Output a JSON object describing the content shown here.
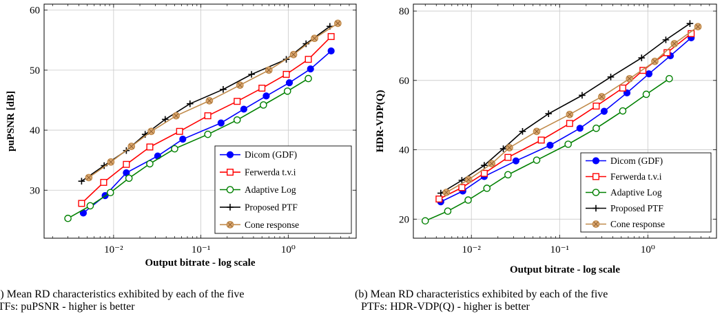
{
  "colors": {
    "dicom": "#0000ff",
    "ferwerda": "#ff0000",
    "adaptive_log": "#008000",
    "proposed": "#000000",
    "cone": "#c08a4a",
    "grid": "#c8c8c8"
  },
  "captions": [
    {
      "line1": "(a) Mean RD characteristics exhibited by each of the five",
      "line2": "PTFs: puPSNR - higher is better"
    },
    {
      "line1": "(b) Mean RD characteristics exhibited by each of the five",
      "line2": "PTFs: HDR-VDP(Q) - higher is better"
    }
  ],
  "chart_data": [
    {
      "type": "line",
      "xscale": "log",
      "xlabel": "Output bitrate - log scale",
      "ylabel": "puPSNR [dB]",
      "xlim": [
        0.0016,
        6
      ],
      "ylim": [
        22,
        61
      ],
      "xticks": [
        0.01,
        0.1,
        1
      ],
      "xtick_labels": [
        "10⁻²",
        "10⁻¹",
        "10⁰"
      ],
      "yticks": [
        30,
        40,
        50,
        60
      ],
      "grid": true,
      "legend_position": "bottom-right",
      "series": [
        {
          "name": "Dicom (GDF)",
          "color_key": "dicom",
          "marker": "filled-circle",
          "x": [
            0.0045,
            0.008,
            0.014,
            0.032,
            0.062,
            0.17,
            0.31,
            0.56,
            1.03,
            1.8,
            3.1
          ],
          "y": [
            26.2,
            29.1,
            32.9,
            35.7,
            38.5,
            41.2,
            43.5,
            45.7,
            47.9,
            50.2,
            53.2
          ]
        },
        {
          "name": "Ferwerda t.v.i",
          "color_key": "ferwerda",
          "marker": "open-square",
          "x": [
            0.0043,
            0.0077,
            0.014,
            0.026,
            0.057,
            0.12,
            0.26,
            0.5,
            0.95,
            1.7,
            3.1
          ],
          "y": [
            27.8,
            31.3,
            34.3,
            37.2,
            39.8,
            42.4,
            44.8,
            47.0,
            49.3,
            51.8,
            55.6
          ]
        },
        {
          "name": "Adaptive Log",
          "color_key": "adaptive_log",
          "marker": "open-circle",
          "x": [
            0.003,
            0.0054,
            0.0092,
            0.015,
            0.026,
            0.05,
            0.12,
            0.26,
            0.52,
            0.98,
            1.7
          ],
          "y": [
            25.3,
            27.4,
            29.6,
            32.0,
            34.4,
            36.9,
            39.3,
            41.7,
            44.2,
            46.5,
            48.6
          ]
        },
        {
          "name": "Proposed PTF",
          "color_key": "proposed",
          "marker": "plus",
          "x": [
            0.0043,
            0.0078,
            0.014,
            0.023,
            0.039,
            0.075,
            0.18,
            0.38,
            0.95,
            1.6,
            3.0
          ],
          "y": [
            31.5,
            34.1,
            36.6,
            39.3,
            41.8,
            44.4,
            46.8,
            49.3,
            51.8,
            54.4,
            57.3
          ]
        },
        {
          "name": "Cone response",
          "color_key": "cone",
          "marker": "crossed-circle",
          "x": [
            0.0052,
            0.0093,
            0.016,
            0.027,
            0.052,
            0.125,
            0.28,
            0.6,
            1.15,
            2.0,
            3.7
          ],
          "y": [
            32.1,
            34.7,
            37.3,
            39.8,
            42.4,
            44.9,
            47.5,
            50.0,
            52.6,
            55.3,
            57.8
          ]
        }
      ]
    },
    {
      "type": "line",
      "xscale": "log",
      "xlabel": "Output bitrate - log scale",
      "ylabel": "HDR-VDP(Q)",
      "xlim": [
        0.0022,
        6
      ],
      "ylim": [
        14.5,
        82
      ],
      "xticks": [
        0.01,
        0.1,
        1
      ],
      "xtick_labels": [
        "10⁻²",
        "10⁻¹",
        "10⁰"
      ],
      "yticks": [
        20,
        40,
        60,
        80
      ],
      "grid": true,
      "legend_position": "bottom-right",
      "series": [
        {
          "name": "Dicom (GDF)",
          "color_key": "dicom",
          "marker": "filled-circle",
          "x": [
            0.0045,
            0.008,
            0.014,
            0.032,
            0.078,
            0.17,
            0.32,
            0.58,
            1.03,
            1.8,
            3.1
          ],
          "y": [
            25.0,
            28.1,
            32.3,
            36.8,
            41.3,
            46.2,
            51.1,
            56.4,
            61.9,
            67.1,
            72.3
          ]
        },
        {
          "name": "Ferwerda t.v.i",
          "color_key": "ferwerda",
          "marker": "open-square",
          "x": [
            0.0043,
            0.0078,
            0.014,
            0.026,
            0.062,
            0.13,
            0.26,
            0.52,
            0.88,
            1.65,
            3.1
          ],
          "y": [
            25.8,
            29.1,
            33.2,
            37.8,
            42.8,
            47.6,
            52.6,
            57.8,
            62.9,
            68.0,
            73.5
          ]
        },
        {
          "name": "Adaptive Log",
          "color_key": "adaptive_log",
          "marker": "open-circle",
          "x": [
            0.003,
            0.0054,
            0.0092,
            0.015,
            0.026,
            0.055,
            0.125,
            0.26,
            0.52,
            0.96,
            1.75
          ],
          "y": [
            19.5,
            22.3,
            25.5,
            28.9,
            32.8,
            37.0,
            41.6,
            46.2,
            51.2,
            56.0,
            60.5
          ]
        },
        {
          "name": "Proposed PTF",
          "color_key": "proposed",
          "marker": "plus",
          "x": [
            0.0045,
            0.0078,
            0.014,
            0.023,
            0.038,
            0.075,
            0.18,
            0.38,
            0.85,
            1.6,
            3.0
          ],
          "y": [
            27.5,
            31.2,
            35.5,
            40.3,
            45.3,
            50.4,
            55.7,
            61.0,
            66.5,
            71.7,
            76.4
          ]
        },
        {
          "name": "Cone response",
          "color_key": "cone",
          "marker": "crossed-circle",
          "x": [
            0.0052,
            0.0093,
            0.017,
            0.027,
            0.055,
            0.13,
            0.3,
            0.62,
            1.2,
            2.0,
            3.7
          ],
          "y": [
            27.7,
            31.4,
            36.0,
            40.6,
            45.3,
            50.2,
            55.3,
            60.5,
            65.5,
            70.6,
            75.5
          ]
        }
      ]
    }
  ]
}
